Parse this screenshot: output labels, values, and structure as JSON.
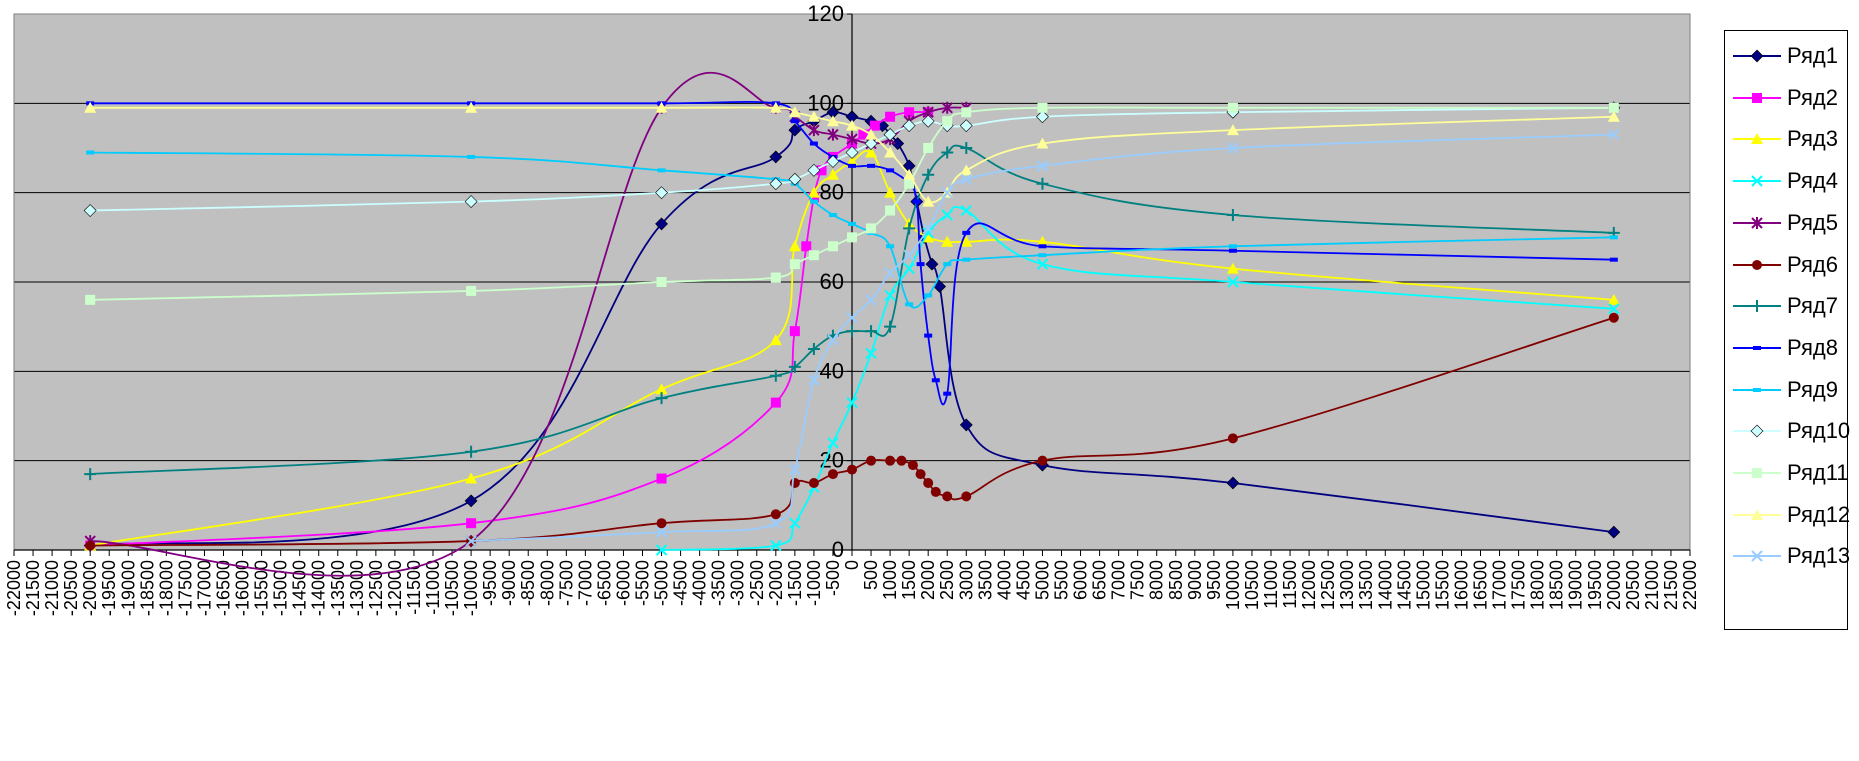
{
  "chart_data": {
    "type": "line",
    "title": "",
    "xlabel": "",
    "ylabel": "",
    "xlim": [
      -22000,
      22000
    ],
    "ylim": [
      0,
      120
    ],
    "y_ticks": [
      0,
      20,
      40,
      60,
      80,
      100,
      120
    ],
    "x_tick_step": 500,
    "grid": "horizontal major gridlines",
    "plot_background": "#c0c0c0",
    "legend_position": "right",
    "series": [
      {
        "name": "Ряд1",
        "color": "#000080",
        "marker": "diamond",
        "x": [
          -20000,
          -10000,
          -5000,
          -2000,
          -1500,
          -1000,
          -500,
          0,
          500,
          800,
          1000,
          1200,
          1500,
          1700,
          1900,
          2100,
          2300,
          3000,
          5000,
          10000,
          20000
        ],
        "y": [
          1,
          11,
          73,
          88,
          94,
          96,
          98,
          97,
          96,
          95,
          93,
          91,
          86,
          78,
          70,
          64,
          59,
          28,
          19,
          15,
          4
        ]
      },
      {
        "name": "Ряд2",
        "color": "#ff00ff",
        "marker": "square",
        "x": [
          -20000,
          -10000,
          -5000,
          -2000,
          -1500,
          -1200,
          -1000,
          -800,
          -500,
          0,
          300,
          600,
          1000,
          1500,
          2000
        ],
        "y": [
          1,
          6,
          16,
          33,
          49,
          68,
          79,
          85,
          88,
          91,
          93,
          95,
          97,
          98,
          98
        ]
      },
      {
        "name": "Ряд3",
        "color": "#ffff00",
        "marker": "triangle",
        "x": [
          -20000,
          -10000,
          -5000,
          -2000,
          -1500,
          -1000,
          -500,
          0,
          500,
          1000,
          1500,
          2000,
          2500,
          3000,
          5000,
          10000,
          20000
        ],
        "y": [
          1,
          16,
          36,
          47,
          68,
          80,
          84,
          87,
          89,
          80,
          73,
          70,
          69,
          69,
          69,
          63,
          56
        ]
      },
      {
        "name": "Ряд4",
        "color": "#00ffff",
        "marker": "x",
        "x": [
          -5000,
          -2000,
          -1500,
          -1000,
          -500,
          0,
          500,
          1000,
          1500,
          2000,
          2500,
          3000,
          5000,
          10000,
          20000
        ],
        "y": [
          0,
          1,
          6,
          14,
          24,
          33,
          44,
          57,
          63,
          71,
          75,
          76,
          64,
          60,
          54
        ]
      },
      {
        "name": "Ряд5",
        "color": "#800080",
        "marker": "star",
        "x": [
          -20000,
          -10000,
          -5000,
          -2000,
          -1500,
          -1000,
          -500,
          0,
          500,
          1000,
          1500,
          2000,
          2500,
          3000
        ],
        "y": [
          2,
          2,
          99,
          99,
          97,
          94,
          93,
          92,
          91,
          92,
          96,
          98,
          99,
          99
        ]
      },
      {
        "name": "Ряд6",
        "color": "#800000",
        "marker": "circle",
        "x": [
          -20000,
          -10000,
          -5000,
          -2000,
          -1500,
          -1000,
          -500,
          0,
          500,
          1000,
          1300,
          1600,
          1800,
          2000,
          2200,
          2500,
          3000,
          5000,
          10000,
          20000
        ],
        "y": [
          1,
          2,
          6,
          8,
          15,
          15,
          17,
          18,
          20,
          20,
          20,
          19,
          17,
          15,
          13,
          12,
          12,
          20,
          25,
          52
        ]
      },
      {
        "name": "Ряд7",
        "color": "#008080",
        "marker": "plus",
        "x": [
          -20000,
          -10000,
          -5000,
          -2000,
          -1500,
          -1000,
          -500,
          0,
          500,
          1000,
          1500,
          2000,
          2500,
          3000,
          5000,
          10000,
          20000
        ],
        "y": [
          17,
          22,
          34,
          39,
          41,
          45,
          48,
          49,
          49,
          50,
          72,
          84,
          89,
          90,
          82,
          75,
          71
        ]
      },
      {
        "name": "Ряд8",
        "color": "#0000ff",
        "marker": "dash",
        "x": [
          -20000,
          -10000,
          -5000,
          -2000,
          -1500,
          -1000,
          -500,
          0,
          500,
          1000,
          1500,
          1700,
          1800,
          2000,
          2200,
          2500,
          3000,
          5000,
          10000,
          20000
        ],
        "y": [
          100,
          100,
          100,
          100,
          96,
          91,
          88,
          86,
          86,
          85,
          82,
          78,
          64,
          48,
          38,
          35,
          71,
          68,
          67,
          65
        ]
      },
      {
        "name": "Ряд9",
        "color": "#00ccff",
        "marker": "dash",
        "x": [
          -20000,
          -10000,
          -5000,
          -2000,
          -1500,
          -1000,
          -500,
          0,
          500,
          1000,
          1500,
          2000,
          2500,
          3000,
          5000,
          10000,
          20000
        ],
        "y": [
          89,
          88,
          85,
          83,
          82,
          78,
          75,
          73,
          71,
          68,
          55,
          57,
          64,
          65,
          66,
          68,
          70
        ]
      },
      {
        "name": "Ряд10",
        "color": "#ccffff",
        "marker": "diamond",
        "x": [
          -20000,
          -10000,
          -5000,
          -2000,
          -1500,
          -1000,
          -500,
          0,
          500,
          1000,
          1500,
          2000,
          2500,
          3000,
          5000,
          10000,
          20000
        ],
        "y": [
          76,
          78,
          80,
          82,
          83,
          85,
          87,
          89,
          91,
          93,
          95,
          96,
          95,
          95,
          97,
          98,
          99
        ]
      },
      {
        "name": "Ряд11",
        "color": "#ccffcc",
        "marker": "square",
        "x": [
          -20000,
          -10000,
          -5000,
          -2000,
          -1500,
          -1000,
          -500,
          0,
          500,
          1000,
          1500,
          2000,
          2500,
          3000,
          5000,
          10000,
          20000
        ],
        "y": [
          56,
          58,
          60,
          61,
          64,
          66,
          68,
          70,
          72,
          76,
          82,
          90,
          96,
          98,
          99,
          99,
          99
        ]
      },
      {
        "name": "Ряд12",
        "color": "#ffff99",
        "marker": "triangle",
        "x": [
          -20000,
          -10000,
          -5000,
          -2000,
          -1500,
          -1000,
          -500,
          0,
          500,
          1000,
          1500,
          2000,
          2500,
          3000,
          5000,
          10000,
          20000
        ],
        "y": [
          99,
          99,
          99,
          99,
          98,
          97,
          96,
          95,
          93,
          89,
          84,
          78,
          80,
          85,
          91,
          94,
          97
        ]
      },
      {
        "name": "Ряд13",
        "color": "#99ccff",
        "marker": "x",
        "x": [
          -10000,
          -5000,
          -2000,
          -1500,
          -1000,
          -500,
          0,
          500,
          1000,
          1500,
          2000,
          2500,
          3000,
          5000,
          10000,
          20000
        ],
        "y": [
          2,
          4,
          6,
          18,
          38,
          47,
          52,
          56,
          62,
          66,
          72,
          80,
          83,
          86,
          90,
          93
        ]
      }
    ]
  }
}
